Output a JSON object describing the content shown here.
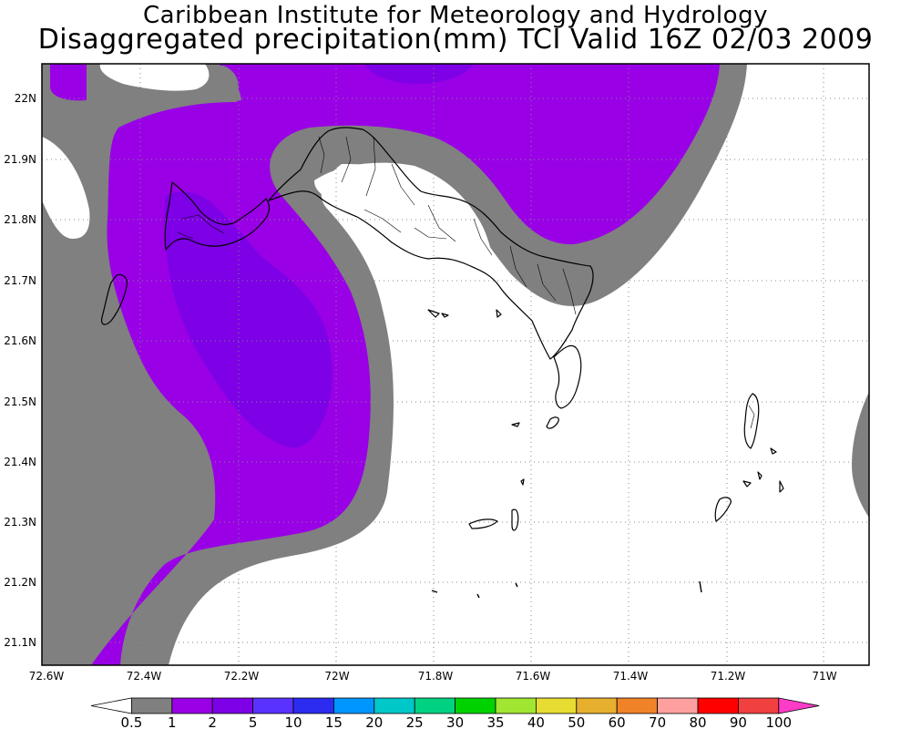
{
  "header": {
    "institution": "Caribbean Institute for Meteorology and Hydrology",
    "product": "Disaggregated precipitation(mm) TCI Valid 16Z 02/03 2009"
  },
  "map": {
    "extent": {
      "lon_min": -72.6,
      "lon_max": -70.9,
      "lat_min": 21.06,
      "lat_max": 22.06
    },
    "gridlines": "dotted",
    "coastline_color": "#000000",
    "lat_ticks": [
      "22N",
      "21.9N",
      "21.8N",
      "21.7N",
      "21.6N",
      "21.5N",
      "21.4N",
      "21.3N",
      "21.2N",
      "21.1N"
    ],
    "lon_ticks": [
      "72.6W",
      "72.4W",
      "72.2W",
      "72W",
      "71.8W",
      "71.6W",
      "71.4W",
      "71.2W",
      "71W"
    ],
    "shaded_levels_visible": [
      {
        "range": "0.5-1",
        "color": "#808080"
      },
      {
        "range": "1-2",
        "color": "#9900e6"
      },
      {
        "range": "2-5",
        "color": "#7d00e6"
      }
    ]
  },
  "colorbar": {
    "labels": [
      "0.5",
      "1",
      "2",
      "5",
      "10",
      "15",
      "20",
      "25",
      "30",
      "35",
      "40",
      "50",
      "60",
      "70",
      "80",
      "90",
      "100"
    ],
    "colors": [
      "#ffffff",
      "#808080",
      "#9900e6",
      "#7d00e6",
      "#5a32ff",
      "#2c2cf0",
      "#0096ff",
      "#00c8c8",
      "#00d282",
      "#00d200",
      "#a0e632",
      "#e6dc32",
      "#e6af2d",
      "#f08228",
      "#ffa0a0",
      "#ff0000",
      "#f04040",
      "#ff3cc8"
    ]
  }
}
